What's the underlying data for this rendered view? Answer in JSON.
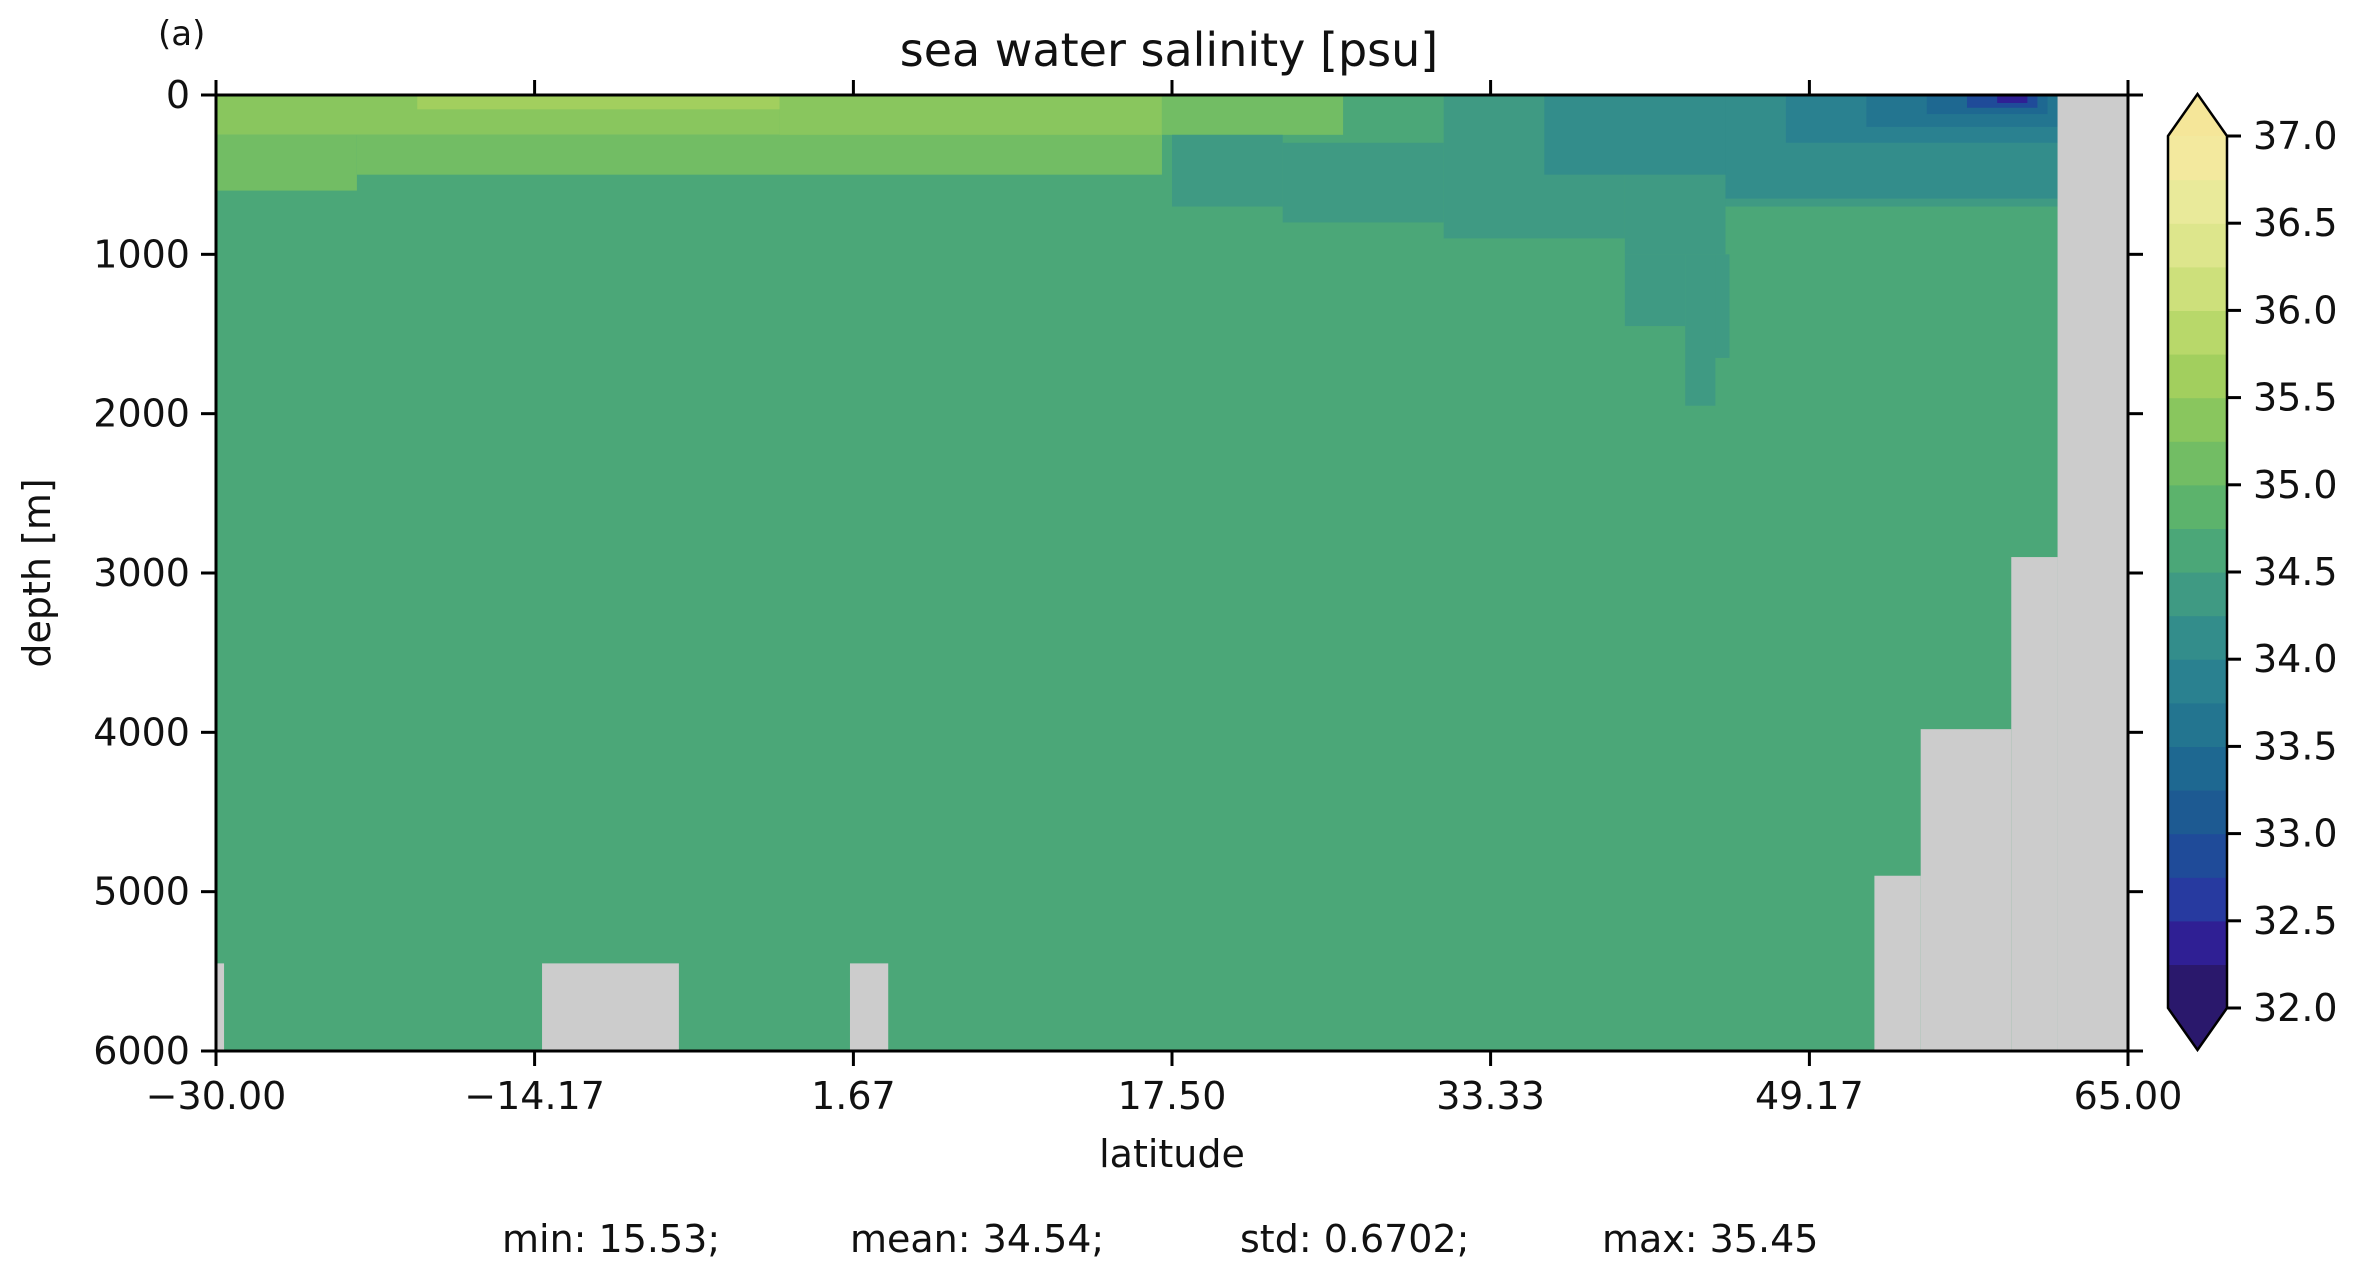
{
  "panel_label": "(a)",
  "chart_data": {
    "type": "heatmap",
    "title": "sea water salinity [psu]",
    "xlabel": "latitude",
    "ylabel": "depth [m]",
    "xlim": [
      -30.0,
      65.0
    ],
    "ylim": [
      0,
      6000
    ],
    "y_inverted": true,
    "x_ticks": [
      "−30.00",
      "−14.17",
      "1.67",
      "17.50",
      "33.33",
      "49.17",
      "65.00"
    ],
    "x_tick_values": [
      -30.0,
      -14.17,
      1.67,
      17.5,
      33.33,
      49.17,
      65.0
    ],
    "y_ticks": [
      "0",
      "1000",
      "2000",
      "3000",
      "4000",
      "5000",
      "6000"
    ],
    "y_tick_values": [
      0,
      1000,
      2000,
      3000,
      4000,
      5000,
      6000
    ],
    "colorbar": {
      "min": 32.0,
      "max": 37.0,
      "step": 0.25,
      "extend": "both",
      "ticks": [
        "32.0",
        "32.5",
        "33.0",
        "33.5",
        "34.0",
        "34.5",
        "35.0",
        "35.5",
        "36.0",
        "36.5",
        "37.0"
      ],
      "tick_values": [
        32.0,
        32.5,
        33.0,
        33.5,
        34.0,
        34.5,
        35.0,
        35.5,
        36.0,
        36.5,
        37.0
      ],
      "colors": [
        "#2a186c",
        "#2f1f94",
        "#273aa0",
        "#1f4b99",
        "#1d5a92",
        "#1e6891",
        "#237590",
        "#2a8190",
        "#338d8b",
        "#3f9a83",
        "#4ba778",
        "#5cb36c",
        "#72bd64",
        "#89c65e",
        "#a2cf5e",
        "#b8d86a",
        "#cde07b",
        "#dde68c",
        "#e9ea9a",
        "#f3e99e"
      ],
      "under_color": "#2a186c",
      "over_color": "#f5e699"
    },
    "fill_value": 34.55,
    "land_color": "#cccccc",
    "regions": [
      {
        "value": 35.3,
        "x": [
          -30.0,
          -2.0
        ],
        "y": [
          0,
          250
        ]
      },
      {
        "value": 35.6,
        "x": [
          -20.0,
          10.0
        ],
        "y": [
          0,
          90
        ]
      },
      {
        "value": 35.3,
        "x": [
          -2.0,
          17.0
        ],
        "y": [
          0,
          300
        ]
      },
      {
        "value": 35.1,
        "x": [
          -30.0,
          -23.0
        ],
        "y": [
          250,
          600
        ]
      },
      {
        "value": 35.1,
        "x": [
          -23.0,
          17.0
        ],
        "y": [
          250,
          500
        ]
      },
      {
        "value": 35.05,
        "x": [
          17.0,
          26.0
        ],
        "y": [
          0,
          250
        ]
      },
      {
        "value": 34.3,
        "x": [
          17.5,
          23.0
        ],
        "y": [
          250,
          700
        ]
      },
      {
        "value": 34.3,
        "x": [
          23.0,
          31.0
        ],
        "y": [
          300,
          800
        ]
      },
      {
        "value": 34.3,
        "x": [
          31.0,
          40.0
        ],
        "y": [
          0,
          900
        ]
      },
      {
        "value": 34.3,
        "x": [
          40.0,
          45.0
        ],
        "y": [
          0,
          1000
        ]
      },
      {
        "value": 34.3,
        "x": [
          45.0,
          61.5
        ],
        "y": [
          0,
          700
        ]
      },
      {
        "value": 34.3,
        "x": [
          40.0,
          43.0
        ],
        "y": [
          1000,
          1450
        ]
      },
      {
        "value": 34.3,
        "x": [
          43.0,
          44.5
        ],
        "y": [
          1000,
          1950
        ]
      },
      {
        "value": 34.3,
        "x": [
          44.5,
          45.2
        ],
        "y": [
          1000,
          1650
        ]
      },
      {
        "value": 34.05,
        "x": [
          36.0,
          45.0
        ],
        "y": [
          0,
          500
        ]
      },
      {
        "value": 34.05,
        "x": [
          45.0,
          61.5
        ],
        "y": [
          0,
          650
        ]
      },
      {
        "value": 33.8,
        "x": [
          48.0,
          61.5
        ],
        "y": [
          0,
          300
        ]
      },
      {
        "value": 33.55,
        "x": [
          52.0,
          61.5
        ],
        "y": [
          0,
          200
        ]
      },
      {
        "value": 33.3,
        "x": [
          55.0,
          61.0
        ],
        "y": [
          0,
          120
        ]
      },
      {
        "value": 32.9,
        "x": [
          57.0,
          60.5
        ],
        "y": [
          0,
          80
        ]
      },
      {
        "value": 32.4,
        "x": [
          58.5,
          60.0
        ],
        "y": [
          0,
          50
        ]
      }
    ],
    "land": [
      {
        "x": [
          -30.0,
          -29.6
        ],
        "y": [
          5450,
          6000
        ]
      },
      {
        "x": [
          -13.8,
          -7.0
        ],
        "y": [
          5450,
          6000
        ]
      },
      {
        "x": [
          1.5,
          3.4
        ],
        "y": [
          5450,
          6000
        ]
      },
      {
        "x": [
          52.4,
          54.7
        ],
        "y": [
          4900,
          6000
        ]
      },
      {
        "x": [
          54.7,
          59.2
        ],
        "y": [
          3980,
          6000
        ]
      },
      {
        "x": [
          59.2,
          61.5
        ],
        "y": [
          2900,
          6000
        ]
      },
      {
        "x": [
          61.5,
          65.0
        ],
        "y": [
          0,
          6000
        ]
      }
    ]
  },
  "stats": {
    "min": "min: 15.53;",
    "mean": "mean: 34.54;",
    "std": "std: 0.6702;",
    "max": "max: 35.45"
  }
}
